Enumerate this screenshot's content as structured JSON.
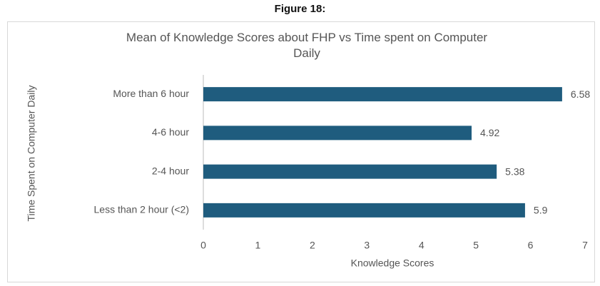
{
  "figure_label": "Figure 18:",
  "chart_data": {
    "type": "hbar",
    "title": "Mean of Knowledge Scores about FHP vs Time spent on Computer Daily",
    "xlabel": "Knowledge Scores",
    "ylabel": "Time Spent on Computer Daily",
    "categories": [
      "More than 6 hour",
      "4-6 hour",
      "2-4 hour",
      "Less than 2 hour (<2)"
    ],
    "values": [
      6.58,
      4.92,
      5.38,
      5.9
    ],
    "color": "#1f5c7e",
    "xlim": [
      0,
      7
    ],
    "xticks": [
      0,
      1,
      2,
      3,
      4,
      5,
      6,
      7
    ]
  }
}
